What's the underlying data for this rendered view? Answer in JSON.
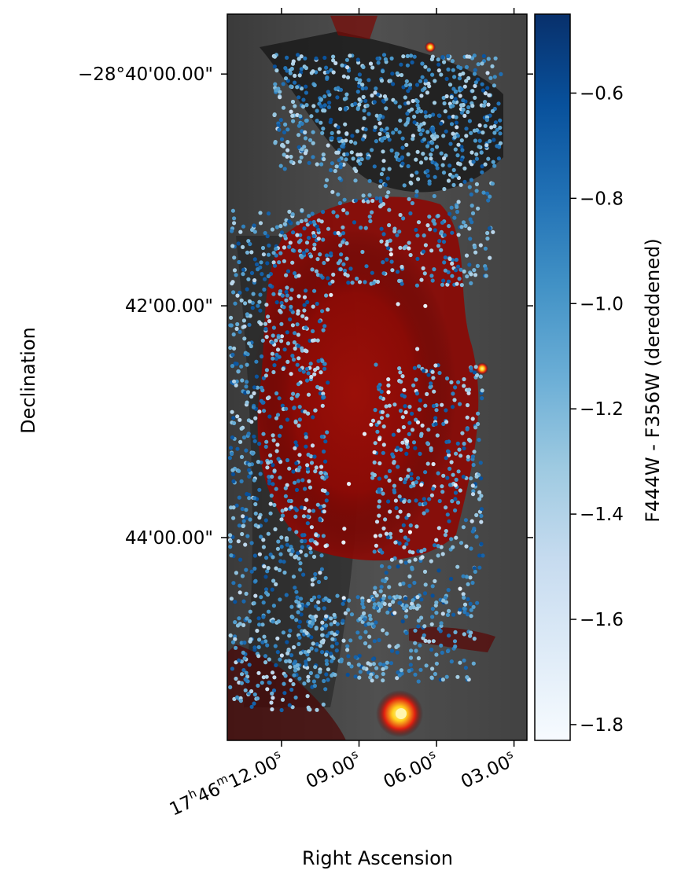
{
  "chart_data": {
    "type": "scatter",
    "title": "",
    "xlabel": "Right Ascension",
    "ylabel": "Declination",
    "x_ticks": [
      {
        "value": 12.0,
        "label_parts": [
          "17",
          "h",
          "46",
          "m",
          "12.00",
          "s"
        ]
      },
      {
        "value": 9.0,
        "label_parts": [
          "",
          "",
          "",
          "",
          "09.00",
          "s"
        ]
      },
      {
        "value": 6.0,
        "label_parts": [
          "",
          "",
          "",
          "",
          "06.00",
          "s"
        ]
      },
      {
        "value": 3.0,
        "label_parts": [
          "",
          "",
          "",
          "",
          "03.00",
          "s"
        ]
      }
    ],
    "y_ticks": [
      {
        "value": 0,
        "label": "−28°40'00.00\""
      },
      {
        "value": 120,
        "label": "42'00.00\""
      },
      {
        "value": 240,
        "label": "44'00.00\""
      }
    ],
    "xlim": [
      14.1,
      2.5
    ],
    "ylim": [
      -31,
      345
    ],
    "colorbar": {
      "label": "F444W - F356W (dereddened)",
      "range": [
        -1.83,
        -0.45
      ],
      "ticks": [
        -0.6,
        -0.8,
        -1.0,
        -1.2,
        -1.4,
        -1.6,
        -1.8
      ],
      "tick_labels": [
        "−0.6",
        "−0.8",
        "−1.0",
        "−1.2",
        "−1.4",
        "−1.6",
        "−1.8"
      ],
      "colormap": "Blues",
      "colors": [
        "#f7fbff",
        "#deebf7",
        "#c6dbef",
        "#9ecae1",
        "#6baed6",
        "#4292c6",
        "#2171b5",
        "#08519c",
        "#08306b"
      ]
    },
    "background": {
      "description_colors": {
        "outer": "#5a5a5a",
        "dark": "#1a1a1a",
        "cloud": "#8b0000",
        "hot": "#ffd21e"
      }
    },
    "point_regions": [
      {
        "ra_min": 12.3,
        "ra_max": 3.5,
        "dec_min": -10,
        "dec_max": 50,
        "n": 620,
        "c_min": -1.5,
        "c_max": -0.6
      },
      {
        "ra_min": 10.3,
        "ra_max": 3.8,
        "dec_min": 50,
        "dec_max": 110,
        "n": 260,
        "c_min": -1.45,
        "c_max": -0.65
      },
      {
        "ra_min": 14.0,
        "ra_max": 10.2,
        "dec_min": 70,
        "dec_max": 330,
        "n": 880,
        "c_min": -1.5,
        "c_max": -0.6
      },
      {
        "ra_min": 8.5,
        "ra_max": 4.2,
        "dec_min": 150,
        "dec_max": 280,
        "n": 420,
        "c_min": -1.5,
        "c_max": -0.6
      },
      {
        "ra_min": 11.5,
        "ra_max": 4.5,
        "dec_min": 270,
        "dec_max": 315,
        "n": 280,
        "c_min": -1.45,
        "c_max": -0.6
      },
      {
        "ra_min": 11.0,
        "ra_max": 5.0,
        "dec_min": 80,
        "dec_max": 280,
        "n": 30,
        "c_min": -1.83,
        "c_max": -1.55
      }
    ]
  }
}
